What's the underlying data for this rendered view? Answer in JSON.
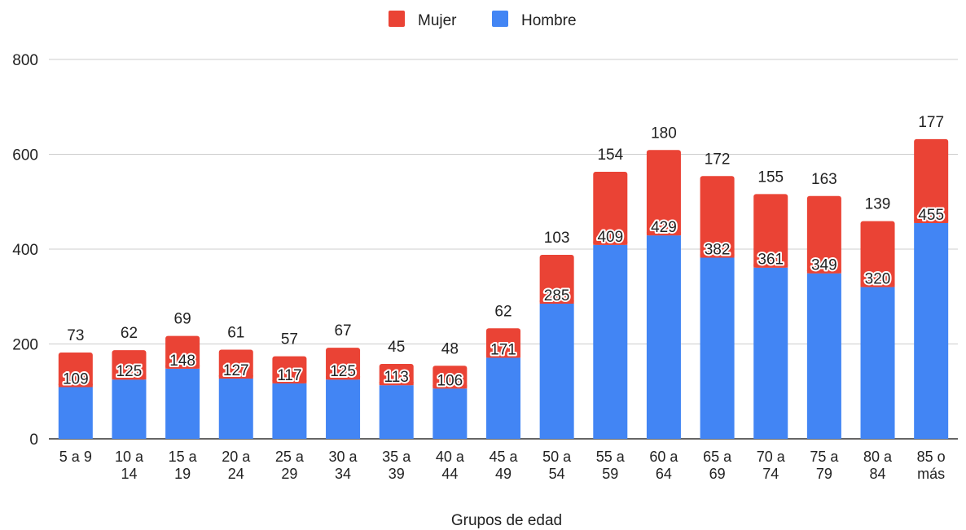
{
  "chart_data": {
    "type": "bar",
    "stacked": true,
    "title": "",
    "xlabel": "Grupos de edad",
    "ylabel": "",
    "ylim": [
      0,
      800
    ],
    "yticks": [
      0,
      200,
      400,
      600,
      800
    ],
    "grid": true,
    "legend_position": "top-center",
    "categories": [
      [
        "5 a 9"
      ],
      [
        "10 a",
        "14"
      ],
      [
        "15 a",
        "19"
      ],
      [
        "20 a",
        "24"
      ],
      [
        "25 a",
        "29"
      ],
      [
        "30 a",
        "34"
      ],
      [
        "35 a",
        "39"
      ],
      [
        "40 a",
        "44"
      ],
      [
        "45 a",
        "49"
      ],
      [
        "50 a",
        "54"
      ],
      [
        "55 a",
        "59"
      ],
      [
        "60 a",
        "64"
      ],
      [
        "65 a",
        "69"
      ],
      [
        "70 a",
        "74"
      ],
      [
        "75 a",
        "79"
      ],
      [
        "80 a",
        "84"
      ],
      [
        "85 o",
        "más"
      ]
    ],
    "series": [
      {
        "name": "Hombre",
        "color": "#4285f4",
        "values": [
          109,
          125,
          148,
          127,
          117,
          125,
          113,
          106,
          171,
          285,
          409,
          429,
          382,
          361,
          349,
          320,
          455
        ]
      },
      {
        "name": "Mujer",
        "color": "#ea4335",
        "values": [
          73,
          62,
          69,
          61,
          57,
          67,
          45,
          48,
          62,
          103,
          154,
          180,
          172,
          155,
          163,
          139,
          177
        ]
      }
    ],
    "legend_order": [
      "Mujer",
      "Hombre"
    ],
    "grid_color": "#cccccc",
    "axis_color": "#333333"
  }
}
